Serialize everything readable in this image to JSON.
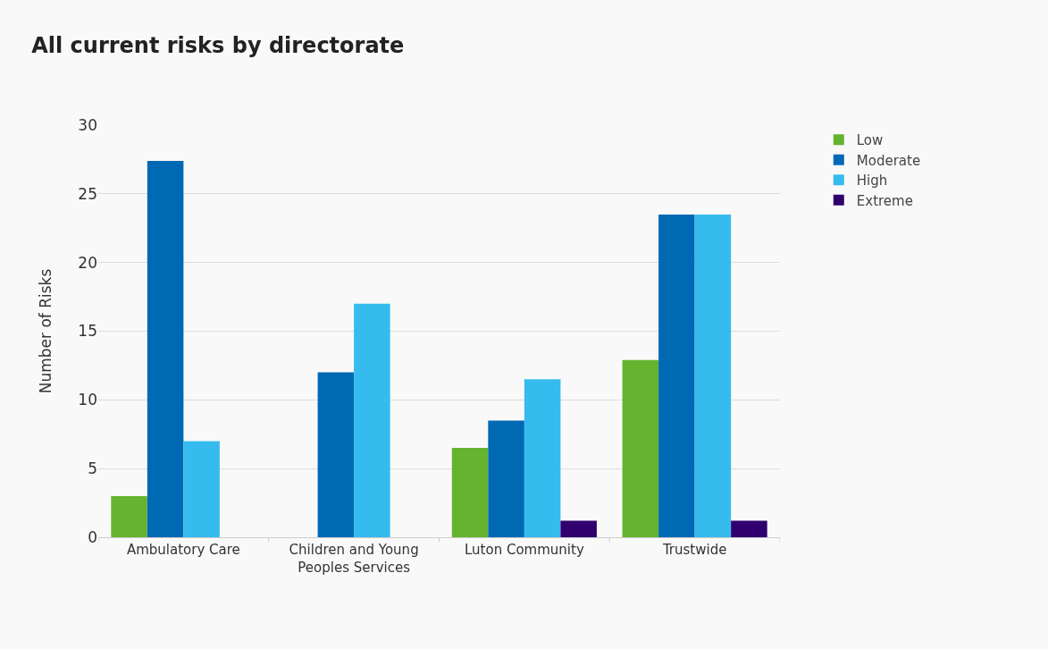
{
  "chart_data": {
    "type": "bar",
    "title": "All current risks by directorate",
    "ylabel": "Number of Risks",
    "categories": [
      "Ambulatory Care",
      "Children and Young Peoples Services",
      "Luton Community",
      "Trustwide"
    ],
    "series": [
      {
        "name": "Low",
        "color": "#65b32e",
        "values": [
          3,
          null,
          6.5,
          12.9
        ]
      },
      {
        "name": "Moderate",
        "color": "#0069b4",
        "values": [
          27.4,
          12,
          8.5,
          23.5
        ]
      },
      {
        "name": "High",
        "color": "#36bbee",
        "values": [
          7,
          17,
          11.5,
          23.5
        ]
      },
      {
        "name": "Extreme",
        "color": "#30006e",
        "values": [
          null,
          null,
          1.2,
          1.2
        ]
      }
    ],
    "ylim": [
      0,
      30
    ],
    "yticks": [
      0,
      5,
      10,
      15,
      20,
      25,
      30
    ],
    "grid": "y",
    "legend": "top right"
  }
}
